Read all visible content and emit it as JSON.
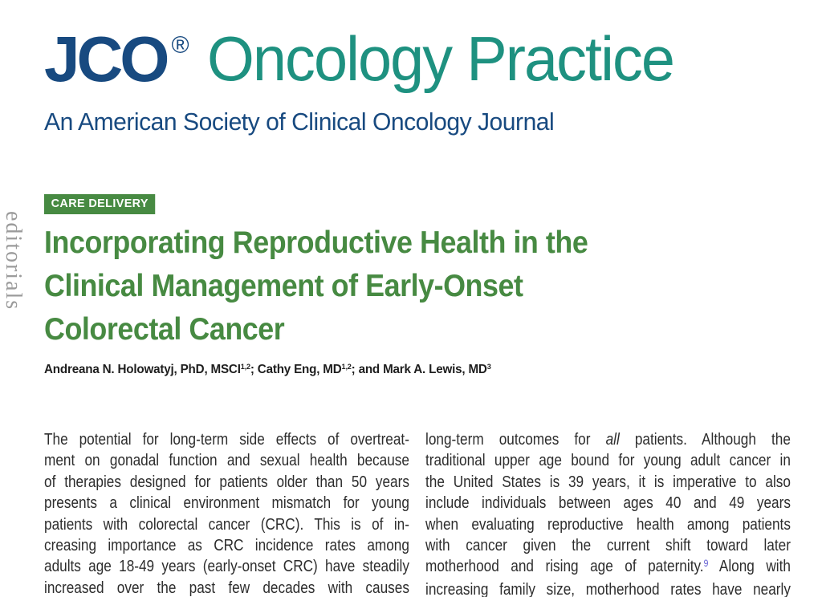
{
  "journal": {
    "logo_text": "JCO",
    "registered_mark": "®",
    "logo_name": "Oncology Practice",
    "subtitle": "An American Society of Clinical Oncology Journal"
  },
  "sidebar": {
    "vertical_label": "editorials"
  },
  "article": {
    "section_badge": "CARE DELIVERY",
    "title_lines": [
      "Incorporating Reproductive Health in the",
      "Clinical Management of Early-Onset",
      "Colorectal Cancer"
    ],
    "authors_segments": [
      {
        "t": "Andreana N. Holowatyj, PhD, MSCI"
      },
      {
        "t": "1,2",
        "s": "sup"
      },
      {
        "t": "; Cathy Eng, MD"
      },
      {
        "t": "1,2",
        "s": "sup"
      },
      {
        "t": "; and Mark A. Lewis, MD"
      },
      {
        "t": "3",
        "s": "sup"
      }
    ]
  },
  "body": {
    "left_column_lines": [
      [
        {
          "t": "The potential for long-term side effects of overtreat-"
        }
      ],
      [
        {
          "t": "ment on gonadal function and sexual health because"
        }
      ],
      [
        {
          "t": "of therapies designed for patients older than 50 years"
        }
      ],
      [
        {
          "t": "presents a clinical environment mismatch for young"
        }
      ],
      [
        {
          "t": "patients with colorectal cancer (CRC). This is of in-"
        }
      ],
      [
        {
          "t": "creasing importance as CRC incidence rates among"
        }
      ],
      [
        {
          "t": "adults age 18-49 years (early-onset CRC) have steadily"
        }
      ],
      [
        {
          "t": "increased over the past few decades with causes"
        }
      ]
    ],
    "right_column_lines": [
      [
        {
          "t": "long-term outcomes for "
        },
        {
          "t": "all",
          "s": "i"
        },
        {
          "t": " patients. Although the"
        }
      ],
      [
        {
          "t": "traditional upper age bound for young adult cancer in"
        }
      ],
      [
        {
          "t": "the United States is 39 years, it is imperative to also"
        }
      ],
      [
        {
          "t": "include individuals between ages 40 and 49 years"
        }
      ],
      [
        {
          "t": "when evaluating reproductive health among patients"
        }
      ],
      [
        {
          "t": "with cancer given the current shift toward later"
        }
      ],
      [
        {
          "t": "motherhood and rising age of paternity."
        },
        {
          "t": "9",
          "s": "ref"
        },
        {
          "t": " Along with"
        }
      ],
      [
        {
          "t": "increasing family size, motherhood rates have nearly"
        }
      ]
    ]
  },
  "colors": {
    "navy": "#184a80",
    "teal": "#1e9180",
    "green": "#478a42",
    "body_text": "#2d2d2d",
    "sidebar_gray": "#9b9b9b",
    "reference_link": "#5f5bd2",
    "badge_text": "#ffffff"
  }
}
